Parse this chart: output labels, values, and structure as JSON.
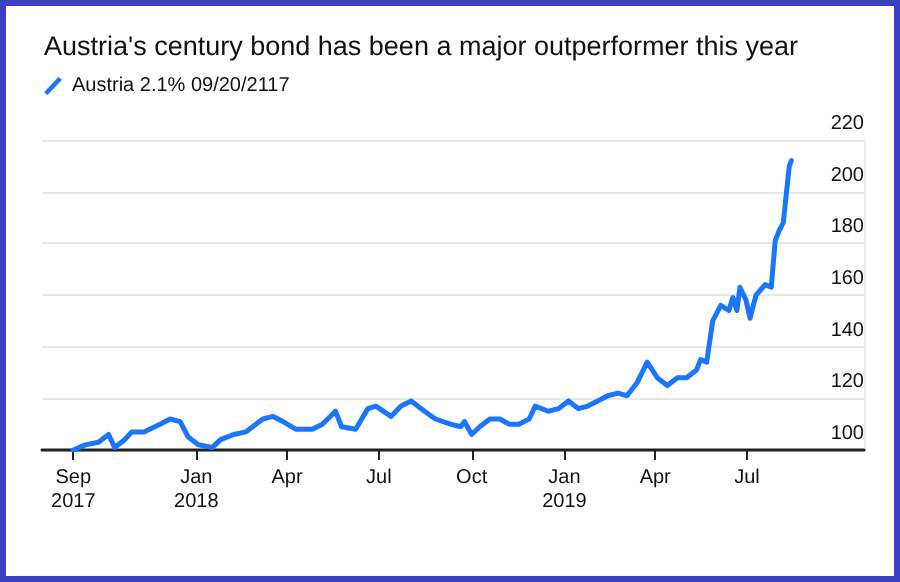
{
  "chart_data": {
    "type": "line",
    "title": "Austria's century bond has been a major outperformer this year",
    "x": [
      "2017-09-01",
      "2017-09-13",
      "2017-09-26",
      "2017-10-06",
      "2017-10-12",
      "2017-10-22",
      "2017-10-29",
      "2017-11-10",
      "2017-11-26",
      "2017-12-06",
      "2017-12-16",
      "2017-12-24",
      "2018-01-03",
      "2018-01-17",
      "2018-01-25",
      "2018-02-07",
      "2018-02-19",
      "2018-03-08",
      "2018-03-18",
      "2018-03-28",
      "2018-04-10",
      "2018-04-26",
      "2018-05-06",
      "2018-05-19",
      "2018-05-25",
      "2018-06-08",
      "2018-06-20",
      "2018-06-28",
      "2018-07-13",
      "2018-07-23",
      "2018-08-02",
      "2018-08-12",
      "2018-08-26",
      "2018-09-10",
      "2018-09-20",
      "2018-09-24",
      "2018-10-01",
      "2018-10-09",
      "2018-10-19",
      "2018-10-29",
      "2018-11-07",
      "2018-11-17",
      "2018-11-27",
      "2018-12-03",
      "2018-12-16",
      "2018-12-26",
      "2019-01-05",
      "2019-01-15",
      "2019-01-24",
      "2019-02-03",
      "2019-02-13",
      "2019-02-23",
      "2019-03-04",
      "2019-03-14",
      "2019-03-24",
      "2019-04-03",
      "2019-04-13",
      "2019-04-23",
      "2019-05-02",
      "2019-05-12",
      "2019-05-16",
      "2019-05-22",
      "2019-05-28",
      "2019-06-05",
      "2019-06-13",
      "2019-06-17",
      "2019-06-21",
      "2019-06-24",
      "2019-06-30",
      "2019-07-04",
      "2019-07-10",
      "2019-07-19",
      "2019-07-25",
      "2019-07-29",
      "2019-08-02",
      "2019-08-06",
      "2019-08-10",
      "2019-08-12",
      "2019-08-14"
    ],
    "series": [
      {
        "name": "Austria 2.1% 09/20/2117",
        "color": "#1a75ff",
        "values": [
          100,
          102,
          103,
          106,
          101,
          104,
          107,
          107,
          110,
          112,
          111,
          105,
          102,
          101,
          104,
          106,
          107,
          112,
          113,
          111,
          108,
          108,
          110,
          115,
          109,
          108,
          116,
          117,
          113,
          117,
          119,
          116,
          112,
          110,
          109,
          111,
          106,
          109,
          112,
          112,
          110,
          110,
          112,
          117,
          115,
          116,
          119,
          116,
          117,
          119,
          121,
          122,
          121,
          126,
          134,
          128,
          125,
          128,
          128,
          131,
          135,
          134,
          150,
          156,
          154,
          159,
          154,
          163,
          158,
          151,
          160,
          164,
          163,
          181,
          185,
          188,
          203,
          210,
          212
        ]
      }
    ],
    "xlim": [
      "2017-08-01",
      "2019-10-25"
    ],
    "xticks": [
      {
        "value": "2017-09-01",
        "label": "Sep\n2017"
      },
      {
        "value": "2018-01-01",
        "label": "Jan\n2018"
      },
      {
        "value": "2018-04-01",
        "label": "Apr"
      },
      {
        "value": "2018-07-01",
        "label": "Jul"
      },
      {
        "value": "2018-10-01",
        "label": "Oct"
      },
      {
        "value": "2019-01-01",
        "label": "Jan\n2019"
      },
      {
        "value": "2019-04-01",
        "label": "Apr"
      },
      {
        "value": "2019-07-01",
        "label": "Jul"
      }
    ],
    "ylim": [
      100,
      220
    ],
    "yticks": [
      100,
      120,
      140,
      160,
      180,
      200,
      220
    ],
    "grid": "y",
    "legend": "top left",
    "marker": "none",
    "line_style": "solid"
  }
}
